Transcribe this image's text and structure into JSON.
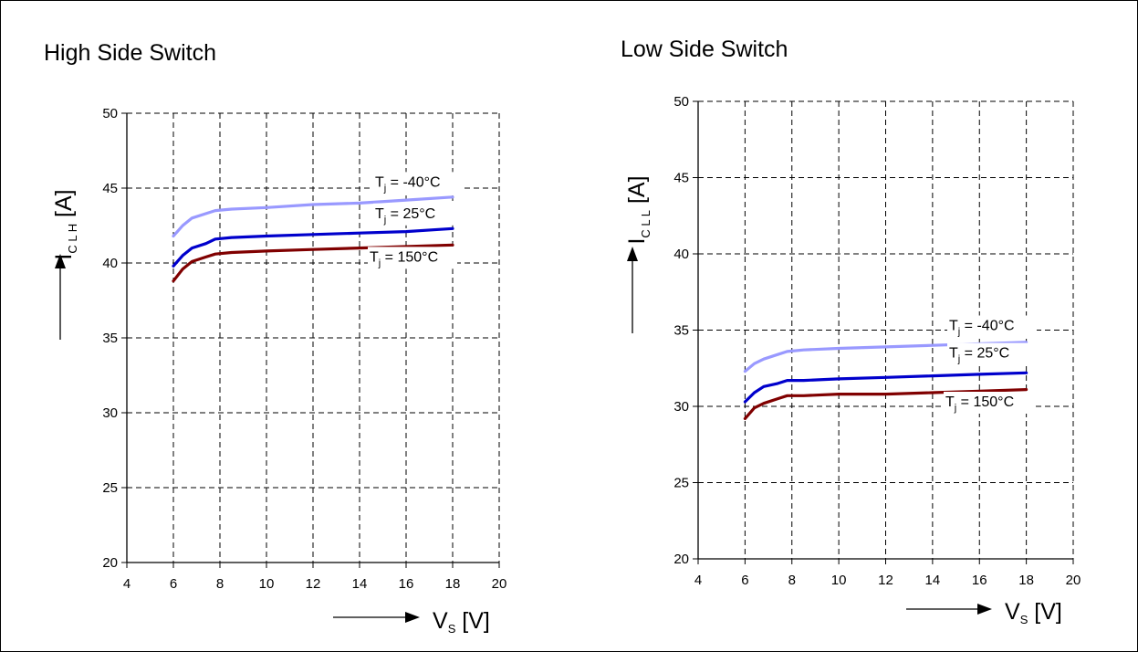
{
  "chart_data": [
    {
      "type": "line",
      "title": "High Side Switch",
      "xlabel": {
        "main": "V",
        "sub": "S",
        "unit": "[V]"
      },
      "ylabel": {
        "main": "I",
        "sub": "C L H",
        "unit": "[A]"
      },
      "xlim": [
        4,
        20
      ],
      "ylim": [
        20,
        50
      ],
      "xticks": [
        "4",
        "6",
        "8",
        "10",
        "12",
        "14",
        "16",
        "18",
        "20"
      ],
      "yticks": [
        "20",
        "25",
        "30",
        "35",
        "40",
        "45",
        "50"
      ],
      "grid": true,
      "series": [
        {
          "name": "T_j = -40°C",
          "label_main": "T",
          "label_sub": "j",
          "label_rest": " = -40°C",
          "color": "#9999ff",
          "x": [
            6,
            6.4,
            6.8,
            7.4,
            7.8,
            8.5,
            10,
            12,
            14,
            16,
            18
          ],
          "y": [
            41.8,
            42.5,
            43.0,
            43.3,
            43.5,
            43.6,
            43.7,
            43.9,
            44.0,
            44.2,
            44.4
          ]
        },
        {
          "name": "T_j = 25°C",
          "label_main": "T",
          "label_sub": "j",
          "label_rest": " = 25°C",
          "color": "#0000cc",
          "x": [
            6,
            6.4,
            6.8,
            7.4,
            7.8,
            8.5,
            10,
            12,
            14,
            16,
            18
          ],
          "y": [
            39.8,
            40.5,
            41.0,
            41.3,
            41.6,
            41.7,
            41.8,
            41.9,
            42.0,
            42.1,
            42.3
          ]
        },
        {
          "name": "T_j = 150°C",
          "label_main": "T",
          "label_sub": "j",
          "label_rest": " = 150°C",
          "color": "#800000",
          "x": [
            6,
            6.4,
            6.8,
            7.4,
            7.8,
            8.5,
            10,
            12,
            14,
            16,
            18
          ],
          "y": [
            38.8,
            39.6,
            40.1,
            40.4,
            40.6,
            40.7,
            40.8,
            40.9,
            41.0,
            41.1,
            41.2
          ]
        }
      ],
      "label_anchor_y": [
        45.1,
        43.0,
        40.1
      ]
    },
    {
      "type": "line",
      "title": "Low Side Switch",
      "xlabel": {
        "main": "V",
        "sub": "S",
        "unit": "[V]"
      },
      "ylabel": {
        "main": "I",
        "sub": "C L L",
        "unit": "[A]"
      },
      "xlim": [
        4,
        20
      ],
      "ylim": [
        20,
        50
      ],
      "xticks": [
        "4",
        "6",
        "8",
        "10",
        "12",
        "14",
        "16",
        "18",
        "20"
      ],
      "yticks": [
        "20",
        "25",
        "30",
        "35",
        "40",
        "45",
        "50"
      ],
      "grid": true,
      "series": [
        {
          "name": "T_j = -40°C",
          "label_main": "T",
          "label_sub": "j",
          "label_rest": " = -40°C",
          "color": "#9999ff",
          "x": [
            6,
            6.4,
            6.8,
            7.4,
            7.8,
            8.5,
            10,
            12,
            14,
            16,
            18
          ],
          "y": [
            32.3,
            32.8,
            33.1,
            33.4,
            33.6,
            33.7,
            33.8,
            33.9,
            34.0,
            34.1,
            34.2
          ]
        },
        {
          "name": "T_j = 25°C",
          "label_main": "T",
          "label_sub": "j",
          "label_rest": " = 25°C",
          "color": "#0000cc",
          "x": [
            6,
            6.4,
            6.8,
            7.4,
            7.8,
            8.5,
            10,
            12,
            14,
            16,
            18
          ],
          "y": [
            30.3,
            30.9,
            31.3,
            31.5,
            31.7,
            31.7,
            31.8,
            31.9,
            32.0,
            32.1,
            32.2
          ]
        },
        {
          "name": "T_j = 150°C",
          "label_main": "T",
          "label_sub": "j",
          "label_rest": " = 150°C",
          "color": "#800000",
          "x": [
            6,
            6.4,
            6.8,
            7.4,
            7.8,
            8.5,
            10,
            12,
            14,
            16,
            18
          ],
          "y": [
            29.2,
            29.9,
            30.2,
            30.5,
            30.7,
            30.7,
            30.8,
            30.8,
            30.9,
            31.0,
            31.1
          ]
        }
      ],
      "label_anchor_y": [
        35.0,
        33.2,
        30.0
      ]
    }
  ]
}
